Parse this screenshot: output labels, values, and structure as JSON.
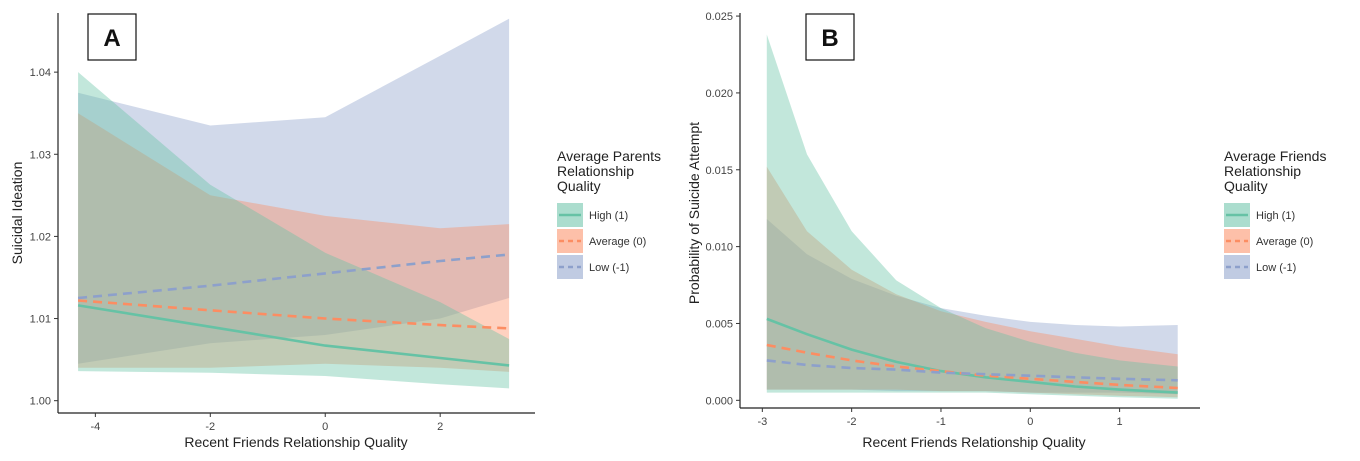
{
  "colors": {
    "high": "#66c2a5",
    "average": "#fc8d62",
    "low": "#8da0cb"
  },
  "chart_data": [
    {
      "type": "line",
      "panel_label": "A",
      "xlabel": "Recent Friends Relationship Quality",
      "ylabel": "Suicidal Ideation",
      "xlim": [
        -4.65,
        3.65
      ],
      "ylim": [
        0.9985,
        1.0472
      ],
      "x_ticks": [
        -4,
        -2,
        0,
        2
      ],
      "x_tick_labels": [
        "-4",
        "-2",
        "0",
        "2"
      ],
      "y_ticks": [
        1.0,
        1.01,
        1.02,
        1.03,
        1.04
      ],
      "y_tick_labels": [
        "1.00",
        "1.01",
        "1.02",
        "1.03",
        "1.04"
      ],
      "grid": false,
      "legend": {
        "title": "Average Parents Relationship Quality",
        "title_lines": [
          "Average Parents",
          "Relationship",
          "Quality"
        ],
        "position": "right",
        "entries": [
          "High (1)",
          "Average (0)",
          "Low (-1)"
        ]
      },
      "series": [
        {
          "name": "High (1)",
          "color_key": "high",
          "dash": "solid",
          "x": [
            -4.3,
            -2,
            0,
            2,
            3.2
          ],
          "y": [
            1.0116,
            1.009,
            1.0067,
            1.0052,
            1.0043
          ],
          "lower": [
            1.0036,
            1.0034,
            1.003,
            1.002,
            1.0015
          ],
          "upper": [
            1.04,
            1.0263,
            1.018,
            1.012,
            1.0075
          ]
        },
        {
          "name": "Average (0)",
          "color_key": "average",
          "dash": "dashed",
          "x": [
            -4.3,
            -2,
            0,
            2,
            3.2
          ],
          "y": [
            1.0122,
            1.011,
            1.01,
            1.0092,
            1.0088
          ],
          "lower": [
            1.004,
            1.004,
            1.0045,
            1.004,
            1.0035
          ],
          "upper": [
            1.035,
            1.025,
            1.0225,
            1.021,
            1.0215
          ]
        },
        {
          "name": "Low (-1)",
          "color_key": "low",
          "dash": "dashed",
          "x": [
            -4.3,
            -2,
            0,
            2,
            3.2
          ],
          "y": [
            1.0125,
            1.014,
            1.0155,
            1.017,
            1.0178
          ],
          "lower": [
            1.0045,
            1.007,
            1.008,
            1.01,
            1.0125
          ],
          "upper": [
            1.0375,
            1.0335,
            1.0345,
            1.042,
            1.0465
          ]
        }
      ]
    },
    {
      "type": "line",
      "panel_label": "B",
      "xlabel": "Recent Friends Relationship Quality",
      "ylabel": "Probability of Suicide Attempt",
      "xlim": [
        -3.25,
        1.9
      ],
      "ylim": [
        -0.0005,
        0.0252
      ],
      "x_ticks": [
        -3,
        -2,
        -1,
        0,
        1
      ],
      "x_tick_labels": [
        "-3",
        "-2",
        "-1",
        "0",
        "1"
      ],
      "y_ticks": [
        0.0,
        0.005,
        0.01,
        0.015,
        0.02,
        0.025
      ],
      "y_tick_labels": [
        "0.000",
        "0.005",
        "0.010",
        "0.015",
        "0.020",
        "0.025"
      ],
      "grid": false,
      "legend": {
        "title": "Average Friends Relationship Quality",
        "title_lines": [
          "Average Friends",
          "Relationship",
          "Quality"
        ],
        "position": "right",
        "entries": [
          "High (1)",
          "Average (0)",
          "Low (-1)"
        ]
      },
      "series": [
        {
          "name": "High (1)",
          "color_key": "high",
          "dash": "solid",
          "x": [
            -2.95,
            -2.5,
            -2,
            -1.5,
            -1,
            -0.5,
            0,
            0.5,
            1,
            1.65
          ],
          "y": [
            0.0053,
            0.0043,
            0.0033,
            0.0025,
            0.0019,
            0.0015,
            0.0012,
            0.0009,
            0.0007,
            0.0005
          ],
          "lower": [
            0.0005,
            0.0005,
            0.0005,
            0.0005,
            0.0005,
            0.0005,
            0.0004,
            0.0003,
            0.0002,
            0.0001
          ],
          "upper": [
            0.0238,
            0.016,
            0.011,
            0.0078,
            0.006,
            0.0047,
            0.0038,
            0.0031,
            0.0026,
            0.0022
          ]
        },
        {
          "name": "Average (0)",
          "color_key": "average",
          "dash": "dashed",
          "x": [
            -2.95,
            -2.5,
            -2,
            -1.5,
            -1,
            -0.5,
            0,
            0.5,
            1,
            1.65
          ],
          "y": [
            0.0036,
            0.0031,
            0.0026,
            0.0022,
            0.0019,
            0.0016,
            0.0014,
            0.0012,
            0.001,
            0.0008
          ],
          "lower": [
            0.0007,
            0.0007,
            0.0007,
            0.0007,
            0.0006,
            0.0006,
            0.0005,
            0.0004,
            0.0003,
            0.0002
          ],
          "upper": [
            0.0152,
            0.011,
            0.0085,
            0.0069,
            0.0058,
            0.0051,
            0.0045,
            0.004,
            0.0035,
            0.003
          ]
        },
        {
          "name": "Low (-1)",
          "color_key": "low",
          "dash": "dashed",
          "x": [
            -2.95,
            -2.5,
            -2,
            -1.5,
            -1,
            -0.5,
            0,
            0.5,
            1,
            1.65
          ],
          "y": [
            0.0026,
            0.0023,
            0.0021,
            0.002,
            0.0018,
            0.0017,
            0.0016,
            0.0015,
            0.0014,
            0.0013
          ],
          "lower": [
            0.0007,
            0.0007,
            0.0007,
            0.0006,
            0.0006,
            0.0006,
            0.0005,
            0.0005,
            0.0005,
            0.0004
          ],
          "upper": [
            0.0118,
            0.0095,
            0.0079,
            0.0068,
            0.006,
            0.0055,
            0.0051,
            0.0049,
            0.0048,
            0.0049
          ]
        }
      ]
    }
  ]
}
